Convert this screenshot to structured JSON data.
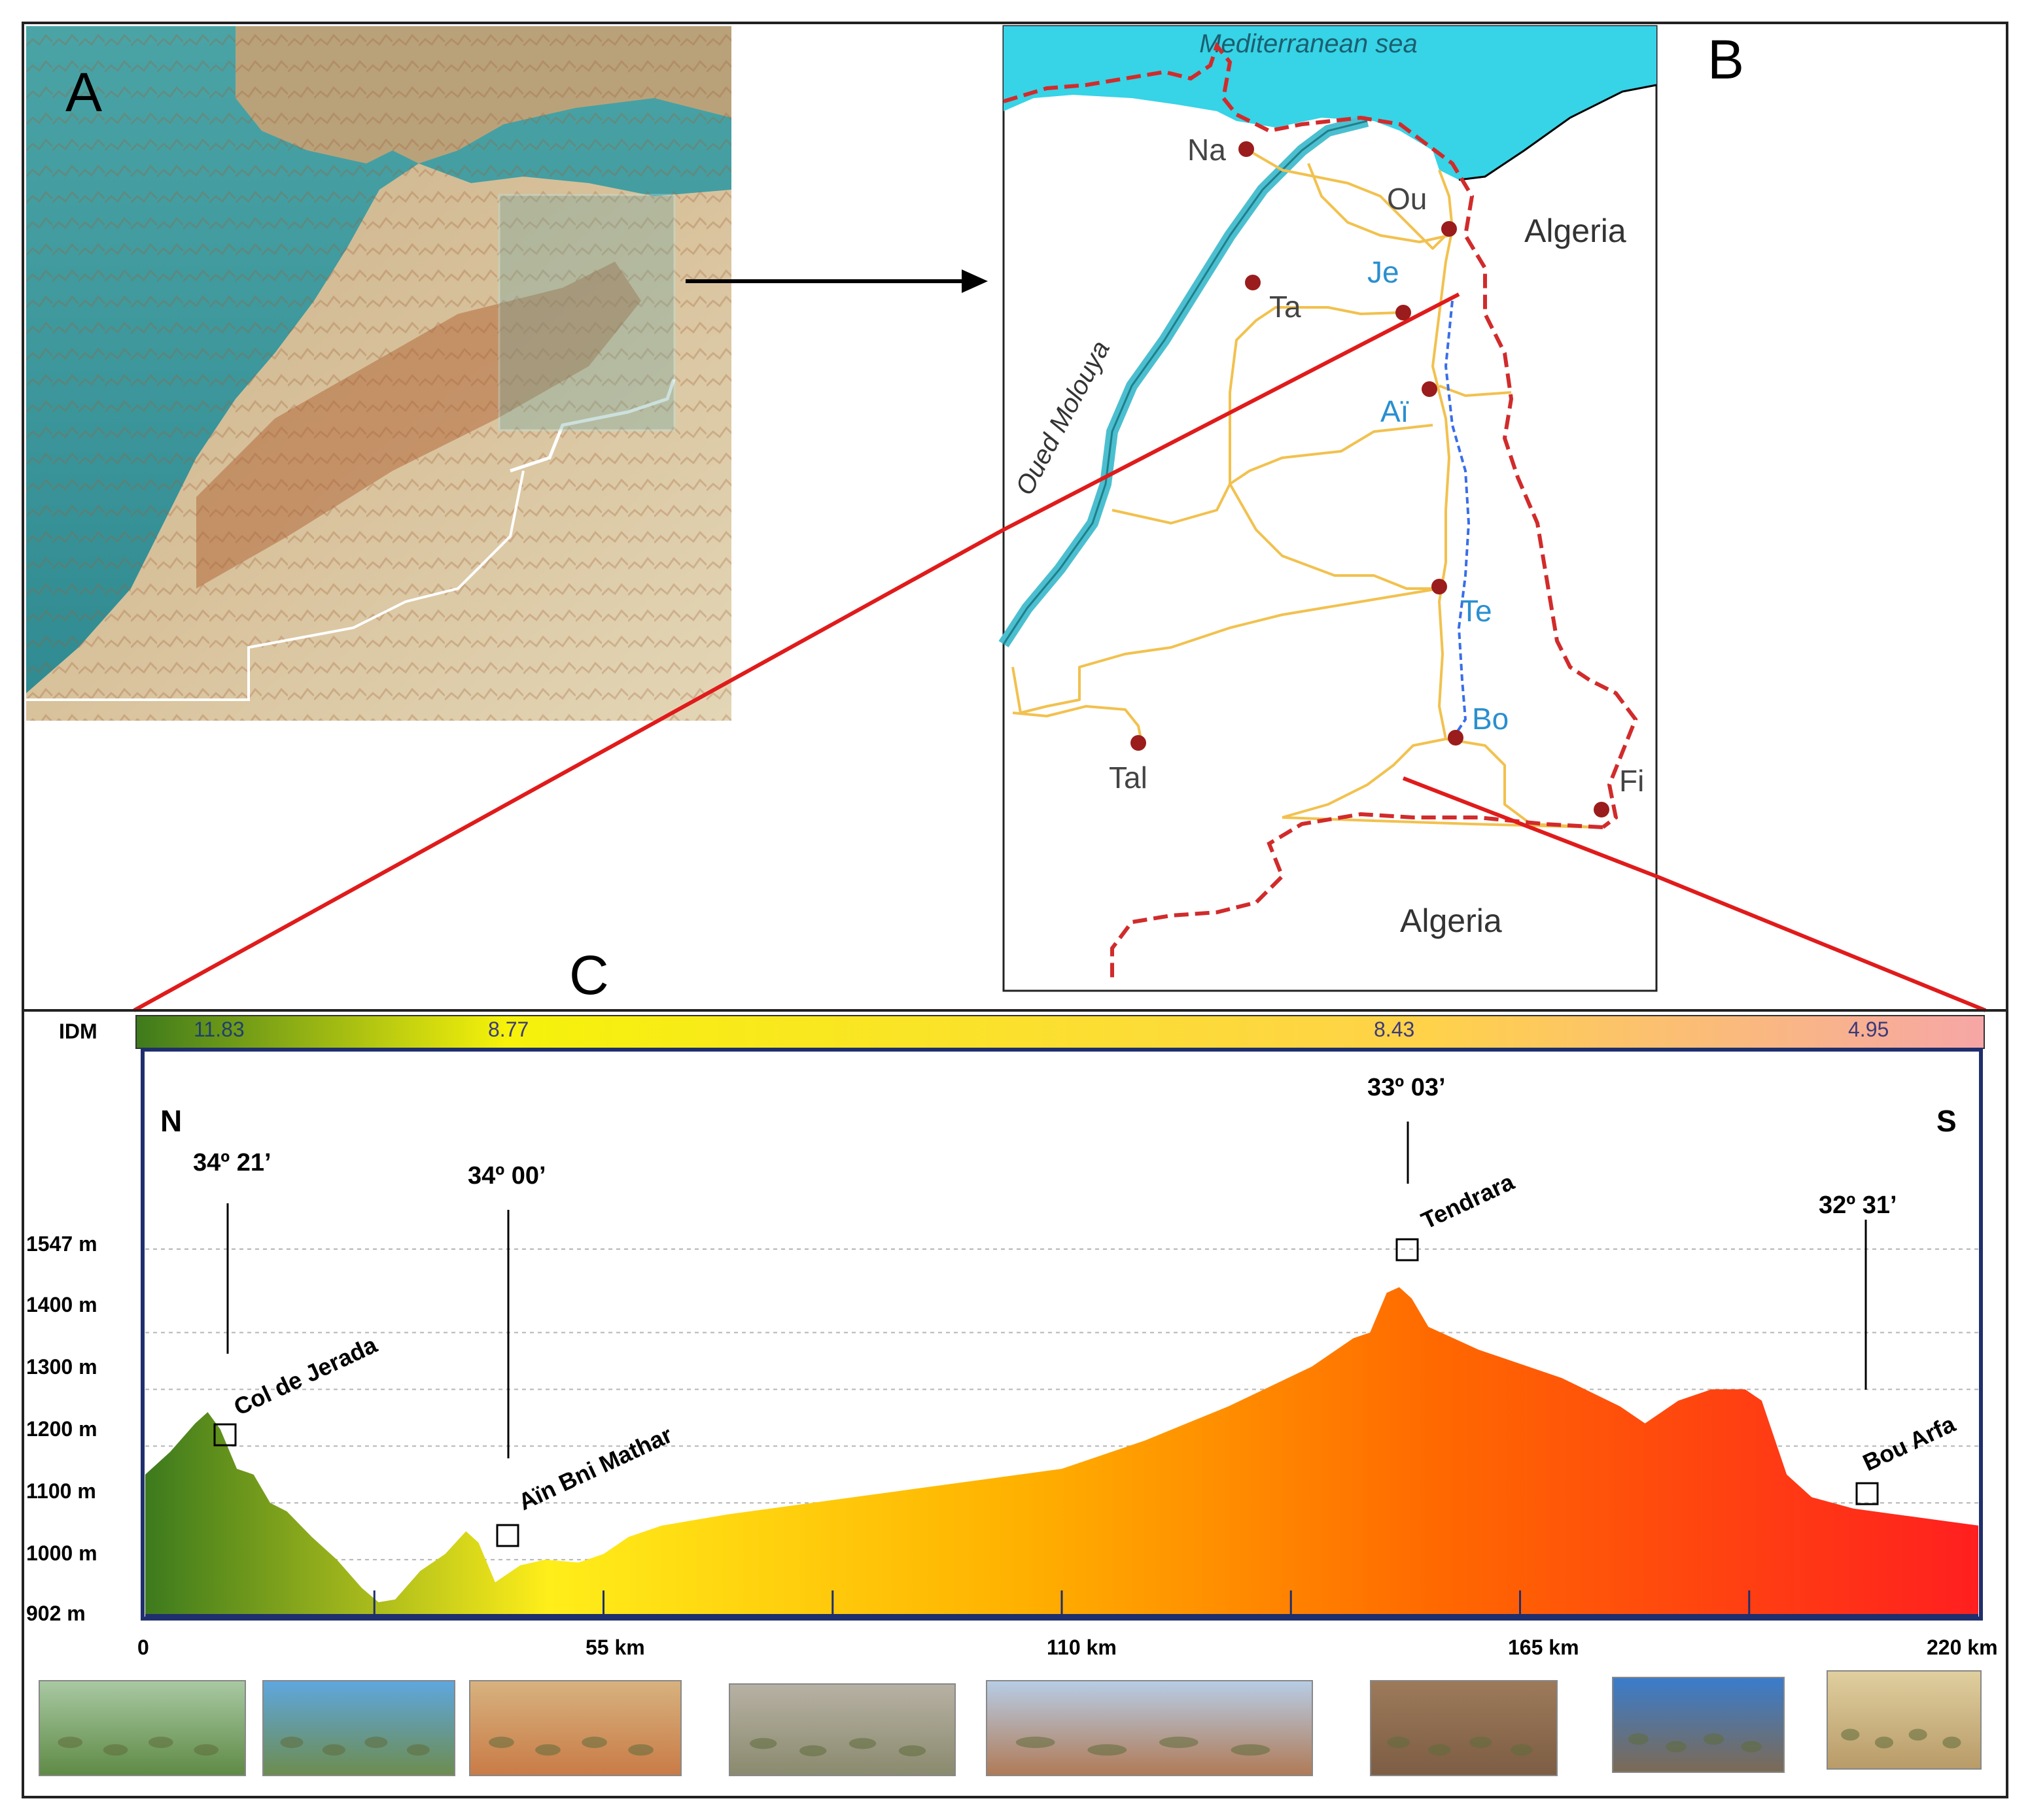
{
  "panels": {
    "a": "A",
    "b": "B",
    "c": "C"
  },
  "map_b": {
    "sea_label": "Mediterranean sea",
    "river_label": "Oued Molouya",
    "countries": [
      "Algeria",
      "Algeria"
    ],
    "towns": [
      {
        "key": "na",
        "label": "Na",
        "color": "#444444"
      },
      {
        "key": "ou",
        "label": "Ou",
        "color": "#444444"
      },
      {
        "key": "ta",
        "label": "Ta",
        "color": "#444444"
      },
      {
        "key": "je",
        "label": "Je",
        "color": "#2a8fd0"
      },
      {
        "key": "ai",
        "label": "Aï",
        "color": "#2a8fd0"
      },
      {
        "key": "te",
        "label": "Te",
        "color": "#2a8fd0"
      },
      {
        "key": "bo",
        "label": "Bo",
        "color": "#2a8fd0"
      },
      {
        "key": "tal",
        "label": "Tal",
        "color": "#444444"
      },
      {
        "key": "fi",
        "label": "Fi",
        "color": "#444444"
      }
    ],
    "colors": {
      "sea": "#37d3e6",
      "river": "#4bbfcf",
      "road": "#f2c14e",
      "border": "#d12b2b",
      "town": "#9b1c1c",
      "route_line": "#e01b1b"
    }
  },
  "idm": {
    "label": "IDM",
    "values": [
      "11.83",
      "8.77",
      "8.43",
      "4.95"
    ],
    "gradient": [
      "#3e7a1c",
      "#f6f20a",
      "#ffd24a",
      "#f6a6a6"
    ]
  },
  "profile": {
    "north": "N",
    "south": "S",
    "coords": [
      "34º 21’",
      "34º 00’",
      "33º 03’",
      "32º 31’"
    ],
    "places": [
      "Col de Jerada",
      "Aïn Bni Mathar",
      "Tendrara",
      "Bou Arfa"
    ],
    "y_labels": [
      "1547 m",
      "1400 m",
      "1300 m",
      "1200 m",
      "1100 m",
      "1000 m",
      "902 m"
    ],
    "x_labels": [
      "0",
      "55 km",
      "110 km",
      "165 km",
      "220 km"
    ]
  },
  "chart_data": {
    "type": "area",
    "title": "",
    "xlabel": "",
    "ylabel": "",
    "x_unit": "km",
    "y_unit": "m",
    "xlim": [
      0,
      220
    ],
    "ylim": [
      902,
      1547
    ],
    "x": [
      0,
      3,
      6,
      7.5,
      9,
      11,
      13,
      15,
      17,
      20,
      23,
      26,
      28,
      30,
      33,
      36,
      38.5,
      40,
      42,
      45,
      48,
      52,
      55,
      58,
      62,
      66,
      70,
      80,
      90,
      100,
      110,
      120,
      130,
      140,
      145,
      147,
      149,
      150.5,
      152,
      154,
      157,
      160,
      170,
      177,
      180,
      184,
      188,
      192,
      194,
      197,
      200,
      205,
      210,
      215,
      220
    ],
    "y": [
      1150,
      1190,
      1240,
      1260,
      1230,
      1160,
      1150,
      1100,
      1085,
      1040,
      1000,
      950,
      925,
      930,
      980,
      1010,
      1050,
      1030,
      960,
      990,
      1000,
      995,
      1010,
      1040,
      1060,
      1070,
      1080,
      1100,
      1120,
      1140,
      1160,
      1210,
      1270,
      1340,
      1390,
      1400,
      1470,
      1480,
      1460,
      1410,
      1390,
      1370,
      1320,
      1270,
      1240,
      1280,
      1300,
      1300,
      1280,
      1150,
      1110,
      1090,
      1080,
      1070,
      1060
    ],
    "annotations": [
      {
        "label": "Col de Jerada",
        "x": 10,
        "y": 1200,
        "coord": "34º 21’"
      },
      {
        "label": "Aïn Bni Mathar",
        "x": 43,
        "y": 1045,
        "coord": "34º 00’"
      },
      {
        "label": "Tendrara",
        "x": 150,
        "y": 1500,
        "coord": "33º 03’"
      },
      {
        "label": "Bou Arfa",
        "x": 207,
        "y": 1105,
        "coord": "32º 31’"
      }
    ],
    "gridlines": [
      1000,
      1100,
      1200,
      1300,
      1400,
      1547
    ],
    "grid": true,
    "fill_colors": [
      "#3c7a1d",
      "#ffee1a",
      "#ffb000",
      "#ff6a00",
      "#ff1f1f"
    ]
  },
  "photos": [
    {
      "desc_colors": [
        "#a9c9a3",
        "#5e8a45"
      ]
    },
    {
      "desc_colors": [
        "#5ea7e0",
        "#6d8c4e"
      ]
    },
    {
      "desc_colors": [
        "#d7b27f",
        "#c97b46"
      ]
    },
    {
      "desc_colors": [
        "#b7b1a4",
        "#8a8a6e"
      ]
    },
    {
      "desc_colors": [
        "#b7cde6",
        "#b07a56"
      ]
    },
    {
      "desc_colors": [
        "#9c7a5a",
        "#7d5d44"
      ]
    },
    {
      "desc_colors": [
        "#3a7ccc",
        "#7c6a55"
      ]
    },
    {
      "desc_colors": [
        "#e0cf9f",
        "#b89b68"
      ]
    }
  ]
}
